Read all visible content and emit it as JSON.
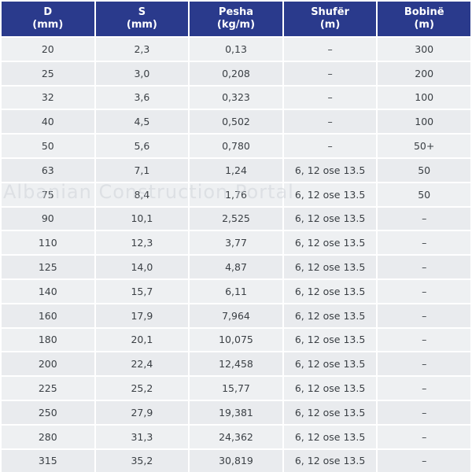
{
  "header": {
    "columns": [
      {
        "l1": "D",
        "l2": "(mm)"
      },
      {
        "l1": "S",
        "l2": "(mm)"
      },
      {
        "l1": "Pesha",
        "l2": "(kg/m)"
      },
      {
        "l1": "Shufër",
        "l2": "(m)"
      },
      {
        "l1": "Bobinë",
        "l2": "(m)"
      }
    ]
  },
  "rows": [
    [
      "20",
      "2,3",
      "0,13",
      "–",
      "300"
    ],
    [
      "25",
      "3,0",
      "0,208",
      "–",
      "200"
    ],
    [
      "32",
      "3,6",
      "0,323",
      "–",
      "100"
    ],
    [
      "40",
      "4,5",
      "0,502",
      "–",
      "100"
    ],
    [
      "50",
      "5,6",
      "0,780",
      "–",
      "50+"
    ],
    [
      "63",
      "7,1",
      "1,24",
      "6, 12 ose 13.5",
      "50"
    ],
    [
      "75",
      "8,4",
      "1,76",
      "6, 12 ose 13.5",
      "50"
    ],
    [
      "90",
      "10,1",
      "2,525",
      "6, 12 ose 13.5",
      "–"
    ],
    [
      "110",
      "12,3",
      "3,77",
      "6, 12 ose 13.5",
      "–"
    ],
    [
      "125",
      "14,0",
      "4,87",
      "6, 12 ose 13.5",
      "–"
    ],
    [
      "140",
      "15,7",
      "6,11",
      "6, 12 ose 13.5",
      "–"
    ],
    [
      "160",
      "17,9",
      "7,964",
      "6, 12 ose 13.5",
      "–"
    ],
    [
      "180",
      "20,1",
      "10,075",
      "6, 12 ose 13.5",
      "–"
    ],
    [
      "200",
      "22,4",
      "12,458",
      "6, 12 ose 13.5",
      "–"
    ],
    [
      "225",
      "25,2",
      "15,77",
      "6, 12 ose 13.5",
      "–"
    ],
    [
      "250",
      "27,9",
      "19,381",
      "6, 12 ose 13.5",
      "–"
    ],
    [
      "280",
      "31,3",
      "24,362",
      "6, 12 ose 13.5",
      "–"
    ],
    [
      "315",
      "35,2",
      "30,819",
      "6, 12 ose 13.5",
      "–"
    ]
  ],
  "watermark": "Albanian Construction Portal",
  "colors": {
    "header_bg": "#2a3a8c",
    "header_text": "#ffffff",
    "cell_bg": "#eef0f2",
    "cell_text": "#3a3f44"
  }
}
